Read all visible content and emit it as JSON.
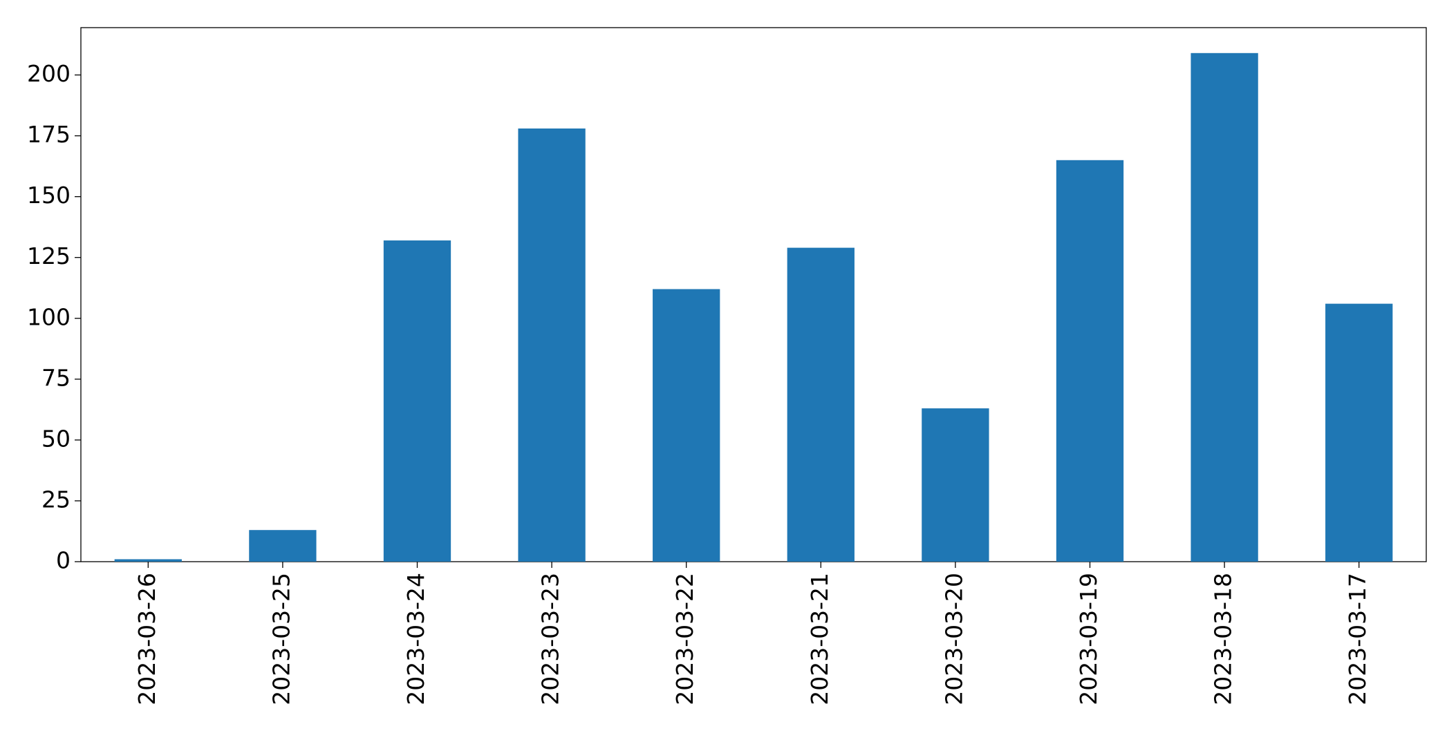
{
  "chart_data": {
    "type": "bar",
    "categories": [
      "2023-03-26",
      "2023-03-25",
      "2023-03-24",
      "2023-03-23",
      "2023-03-22",
      "2023-03-21",
      "2023-03-20",
      "2023-03-19",
      "2023-03-18",
      "2023-03-17"
    ],
    "values": [
      1,
      13,
      132,
      178,
      112,
      129,
      63,
      165,
      209,
      106
    ],
    "color": "#1f77b4",
    "ylim": [
      0,
      219.45
    ],
    "yticks": [
      0,
      25,
      50,
      75,
      100,
      125,
      150,
      175,
      200
    ]
  }
}
